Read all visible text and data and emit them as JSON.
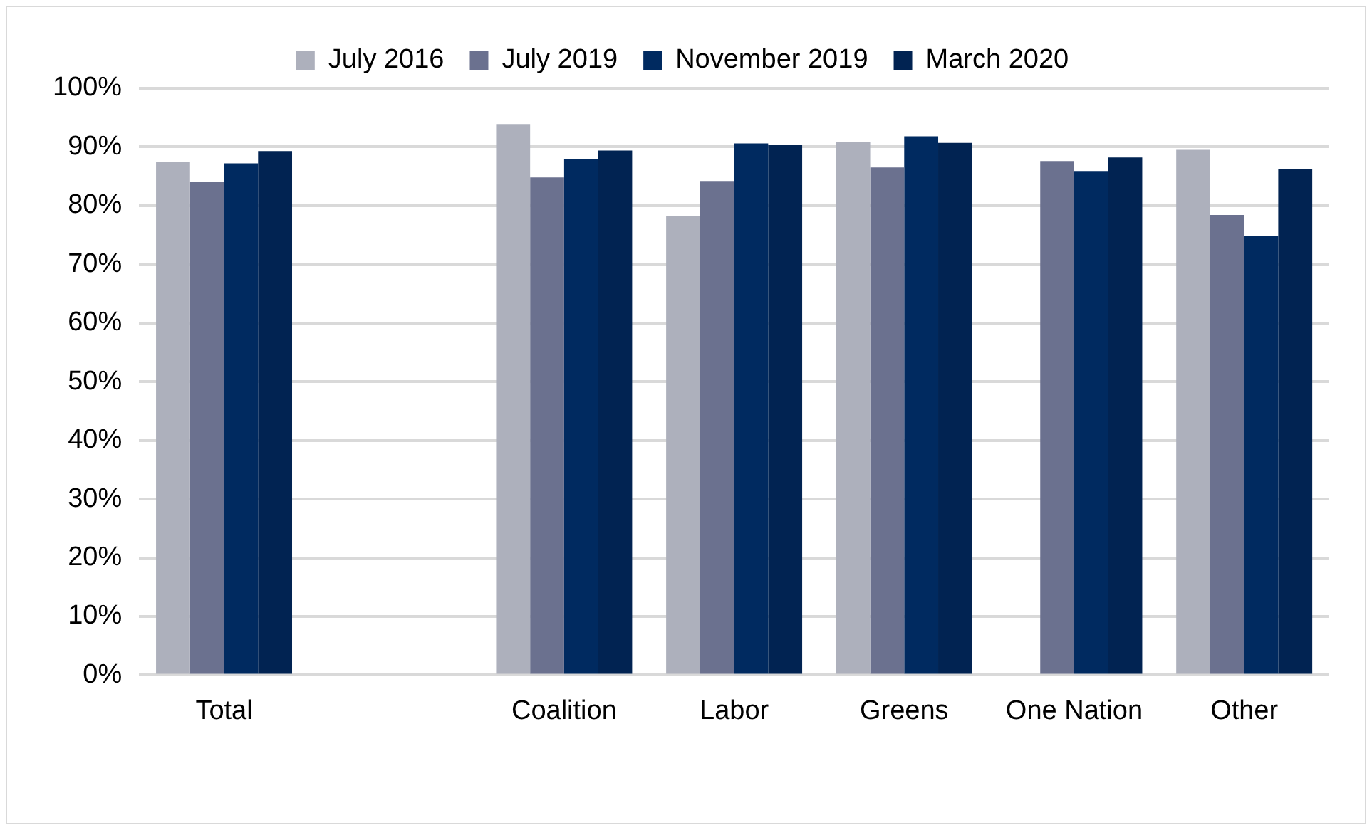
{
  "chart_data": {
    "type": "bar",
    "categories": [
      "Total",
      null,
      "Coalition",
      "Labor",
      "Greens",
      "One Nation",
      "Other"
    ],
    "series": [
      {
        "name": "July 2016",
        "color": "#adb0bc",
        "values": [
          87.5,
          null,
          93.9,
          78.2,
          90.9,
          null,
          89.5
        ]
      },
      {
        "name": "July 2019",
        "color": "#6b718f",
        "values": [
          84.1,
          null,
          84.8,
          84.2,
          86.5,
          87.6,
          78.4
        ]
      },
      {
        "name": "November 2019",
        "color": "#002a60",
        "values": [
          87.2,
          null,
          88.0,
          90.6,
          91.8,
          85.9,
          74.8
        ]
      },
      {
        "name": "March 2020",
        "color": "#012352",
        "values": [
          89.3,
          null,
          89.4,
          90.3,
          90.7,
          88.2,
          86.2
        ]
      }
    ],
    "ylim": [
      0,
      100
    ],
    "yticks": [
      {
        "value": 0,
        "label": "0%"
      },
      {
        "value": 10,
        "label": "10%"
      },
      {
        "value": 20,
        "label": "20%"
      },
      {
        "value": 30,
        "label": "30%"
      },
      {
        "value": 40,
        "label": "40%"
      },
      {
        "value": 50,
        "label": "50%"
      },
      {
        "value": 60,
        "label": "60%"
      },
      {
        "value": 70,
        "label": "70%"
      },
      {
        "value": 80,
        "label": "80%"
      },
      {
        "value": 90,
        "label": "90%"
      },
      {
        "value": 100,
        "label": "100%"
      }
    ],
    "grid": "y",
    "legend": "top"
  }
}
